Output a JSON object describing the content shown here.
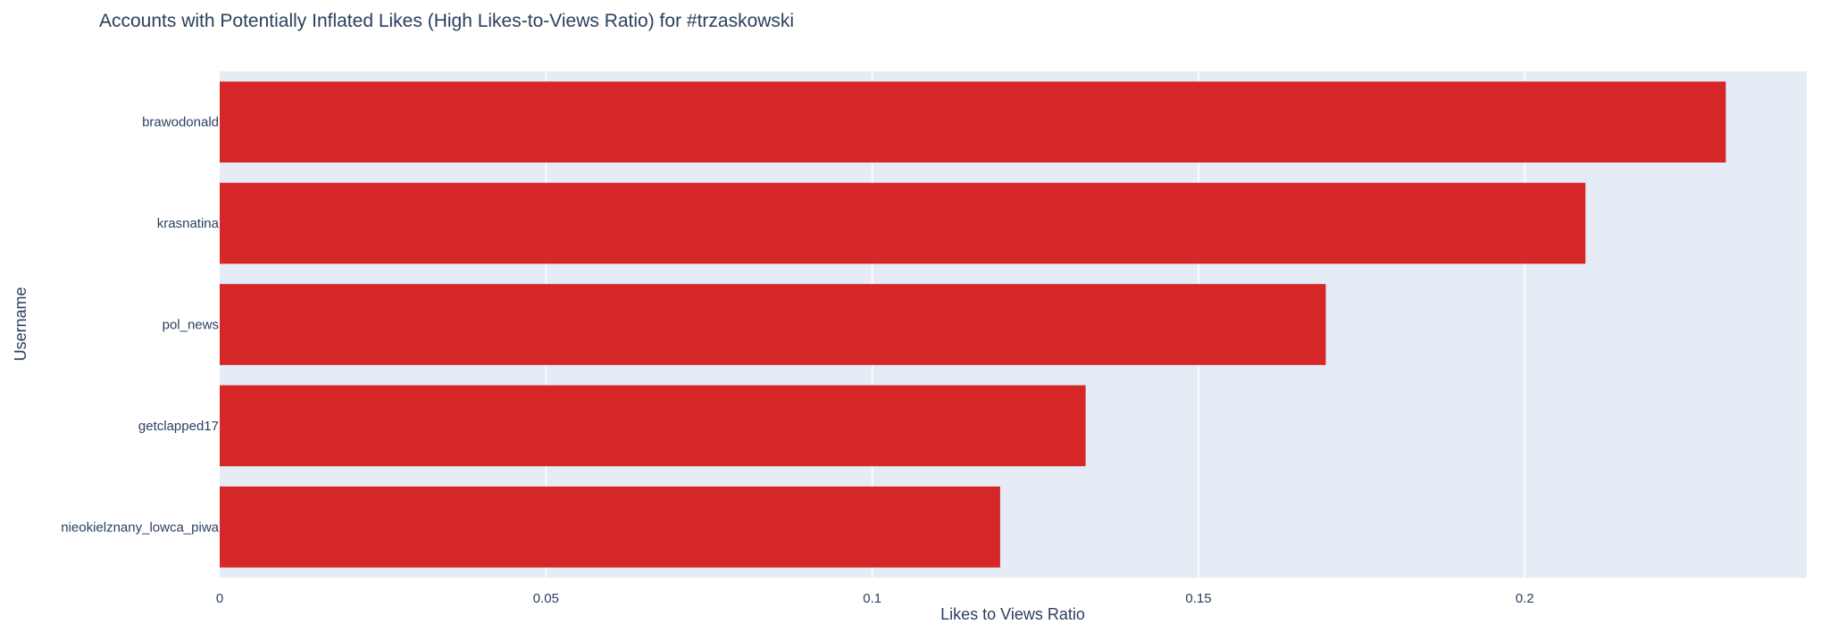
{
  "chart_data": {
    "type": "bar",
    "orientation": "horizontal",
    "title": "Accounts with Potentially Inflated Likes (High Likes-to-Views Ratio) for #trzaskowski",
    "xlabel": "Likes to Views Ratio",
    "ylabel": "Username",
    "categories": [
      "brawodonald",
      "krasnatina",
      "pol_news",
      "getclapped17",
      "nieokielznany_lowca_piwa"
    ],
    "values": [
      0.2308,
      0.2093,
      0.1695,
      0.1327,
      0.1196
    ],
    "xlim": [
      0,
      0.2432
    ],
    "x_ticks": [
      0,
      0.05,
      0.1,
      0.15,
      0.2
    ],
    "x_tick_labels": [
      "0",
      "0.05",
      "0.1",
      "0.15",
      "0.2"
    ],
    "bar_color": "#d62728",
    "plot_background": "#e5ecf6",
    "grid": true,
    "legend": false
  }
}
